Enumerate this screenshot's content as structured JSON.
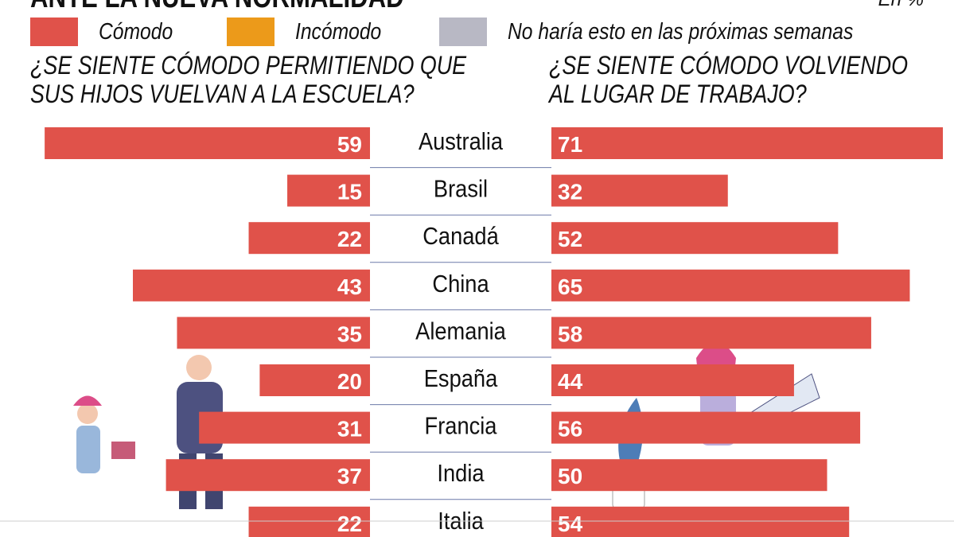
{
  "title": "ANTE LA NUEVA NORMALIDAD",
  "unit": "En %",
  "legend": [
    {
      "label": "Cómodo",
      "color": "#e0524a"
    },
    {
      "label": "Incómodo",
      "color": "#ec9a1a"
    },
    {
      "label": "No haría esto en las próximas semanas",
      "color": "#b8b8c4"
    }
  ],
  "chart_data": {
    "type": "bar",
    "categories": [
      "Australia",
      "Brasil",
      "Canadá",
      "China",
      "Alemania",
      "España",
      "Francia",
      "India",
      "Italia"
    ],
    "series": [
      {
        "name": "¿SE SIENTE CÓMODO PERMITIENDO QUE SUS HIJOS VUELVAN A LA ESCUELA?",
        "title_lines": [
          "¿SE SIENTE CÓMODO PERMITIENDO QUE",
          "SUS HIJOS VUELVAN A LA ESCUELA?"
        ],
        "values": [
          59,
          15,
          22,
          43,
          35,
          20,
          31,
          37,
          22
        ],
        "color": "#e0524a",
        "direction": "left"
      },
      {
        "name": "¿SE SIENTE CÓMODO VOLVIENDO AL LUGAR DE TRABAJO?",
        "title_lines": [
          "¿SE SIENTE CÓMODO VOLVIENDO",
          "AL LUGAR DE TRABAJO?"
        ],
        "values": [
          71,
          32,
          52,
          65,
          58,
          44,
          56,
          50,
          54
        ],
        "color": "#e0524a",
        "direction": "right"
      }
    ],
    "xlim": [
      0,
      71
    ],
    "legend_position": "top"
  }
}
